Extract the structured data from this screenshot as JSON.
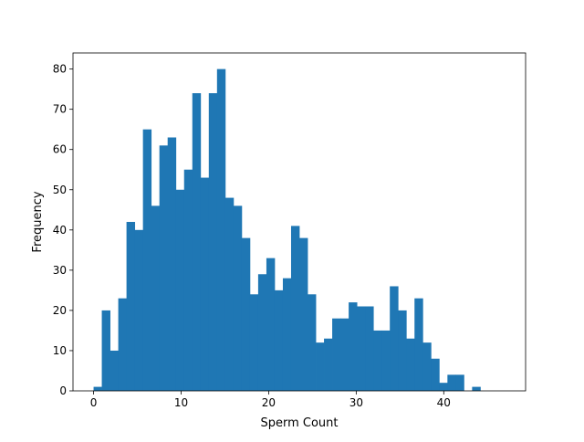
{
  "chart_data": {
    "type": "bar",
    "title": "",
    "xlabel": "Sperm Count",
    "ylabel": "Frequency",
    "xlim": [
      -2.35,
      49.35
    ],
    "ylim": [
      0,
      84
    ],
    "x_ticks": [
      0,
      10,
      20,
      30,
      40
    ],
    "y_ticks": [
      0,
      10,
      20,
      30,
      40,
      50,
      60,
      70,
      80
    ],
    "grid": false,
    "bin_start": 0,
    "bin_width": 0.94,
    "bar_color": "#1f77b4",
    "values": [
      1,
      20,
      10,
      23,
      42,
      40,
      65,
      46,
      61,
      63,
      50,
      55,
      74,
      53,
      74,
      80,
      48,
      46,
      38,
      24,
      29,
      33,
      25,
      28,
      41,
      38,
      24,
      12,
      13,
      18,
      18,
      22,
      21,
      21,
      15,
      15,
      26,
      20,
      13,
      23,
      12,
      8,
      2,
      4,
      4,
      0,
      1
    ]
  }
}
